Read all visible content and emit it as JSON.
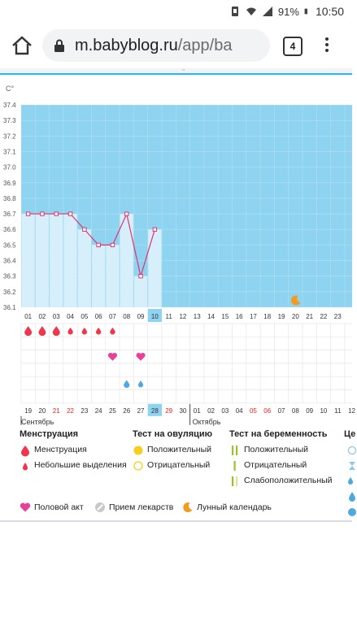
{
  "status": {
    "signal_percent": "91%",
    "time": "10:50"
  },
  "browser": {
    "url_host": "m.babyblog.ru",
    "url_path": "/app/ba",
    "tab_count": "4"
  },
  "chart": {
    "unit": "C°",
    "y_ticks": [
      "37.4",
      "37.3",
      "37.2",
      "37.1",
      "37.0",
      "36.9",
      "36.8",
      "36.7",
      "36.6",
      "36.5",
      "36.4",
      "36.3",
      "36.2",
      "36.1"
    ],
    "cycle_days": [
      "01",
      "02",
      "03",
      "04",
      "05",
      "06",
      "07",
      "08",
      "09",
      "10",
      "11",
      "12",
      "13",
      "14",
      "15",
      "16",
      "17",
      "18",
      "19",
      "20",
      "21",
      "22",
      "23"
    ],
    "current_day": "10",
    "dates": [
      "19",
      "20",
      "21",
      "22",
      "23",
      "24",
      "25",
      "26",
      "27",
      "28",
      "29",
      "30",
      "01",
      "02",
      "03",
      "04",
      "05",
      "06",
      "07",
      "08",
      "09",
      "10",
      "11",
      "12"
    ],
    "red_dates": [
      "21",
      "22",
      "29",
      "05",
      "06"
    ],
    "today_date_index": 9,
    "month1": "Сентябрь",
    "month2": "Октябрь",
    "colors": {
      "bg": "#8ed3f0",
      "bar": "#d6effb",
      "line": "#e0336f",
      "blood": "#f0354c",
      "heart": "#e93f9b",
      "drop": "#4fa8e0",
      "moon": "#f29b21",
      "grid": "#e6e6e6"
    }
  },
  "chart_data": {
    "type": "line",
    "x": [
      "01",
      "02",
      "03",
      "04",
      "05",
      "06",
      "07",
      "08",
      "09",
      "10"
    ],
    "values": [
      36.7,
      36.7,
      36.7,
      36.7,
      36.6,
      36.5,
      36.5,
      36.7,
      36.3,
      36.6
    ],
    "ylim": [
      36.1,
      37.4
    ],
    "menstruation": {
      "heavy_days": [
        "01",
        "02",
        "03"
      ],
      "light_days": [
        "04",
        "05",
        "06",
        "07"
      ]
    },
    "intercourse_days": [
      "07",
      "09"
    ],
    "drop_days": [
      "08",
      "09"
    ],
    "moon_day": "20"
  },
  "legend": {
    "menstruation": {
      "title": "Менструация",
      "items": [
        "Менструация",
        "Небольшие выделения"
      ]
    },
    "ovulation": {
      "title": "Тест на овуляцию",
      "items": [
        "Положительный",
        "Отрицательный"
      ]
    },
    "pregnancy": {
      "title": "Тест на беременность",
      "items": [
        "Положительный",
        "Отрицательный",
        "Слабоположительный"
      ]
    },
    "cervix": {
      "title": "Це"
    },
    "bottom": {
      "intercourse": "Половой акт",
      "medicine": "Прием лекарств",
      "lunar": "Лунный календарь"
    }
  }
}
